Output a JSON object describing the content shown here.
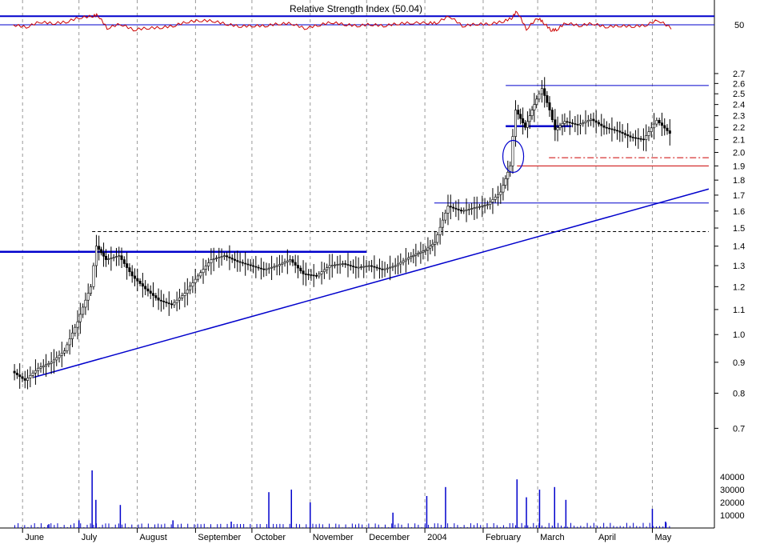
{
  "chart_data": {
    "type": "candlestick",
    "rsi_panel": {
      "title": "Relative Strength Index (50.04)",
      "y_tick_label": "50",
      "value_range": [
        0,
        100
      ],
      "levels": [
        70,
        50
      ]
    },
    "price_panel": {
      "scale": "log",
      "ylim": [
        0.63,
        2.8
      ],
      "y_ticks": [
        "2.7",
        "2.6",
        "2.5",
        "2.4",
        "2.3",
        "2.2",
        "2.1",
        "2.0",
        "1.9",
        "1.8",
        "1.7",
        "1.6",
        "1.5",
        "1.4",
        "1.3",
        "1.2",
        "1.1",
        "1.0",
        "0.9",
        "0.8",
        "0.7"
      ],
      "grid": "vertical dashed at month starts",
      "series": [
        {
          "date": "2003-05-27",
          "close": 0.87
        },
        {
          "date": "2003-06-03",
          "close": 0.84
        },
        {
          "date": "2003-06-10",
          "close": 0.88
        },
        {
          "date": "2003-06-17",
          "close": 0.9
        },
        {
          "date": "2003-06-24",
          "close": 0.94
        },
        {
          "date": "2003-07-01",
          "close": 1.05
        },
        {
          "date": "2003-07-08",
          "close": 1.2
        },
        {
          "date": "2003-07-11",
          "close": 1.4
        },
        {
          "date": "2003-07-16",
          "close": 1.33
        },
        {
          "date": "2003-07-23",
          "close": 1.35
        },
        {
          "date": "2003-07-30",
          "close": 1.25
        },
        {
          "date": "2003-08-06",
          "close": 1.19
        },
        {
          "date": "2003-08-13",
          "close": 1.14
        },
        {
          "date": "2003-08-20",
          "close": 1.12
        },
        {
          "date": "2003-08-27",
          "close": 1.17
        },
        {
          "date": "2003-09-03",
          "close": 1.25
        },
        {
          "date": "2003-09-10",
          "close": 1.33
        },
        {
          "date": "2003-09-17",
          "close": 1.35
        },
        {
          "date": "2003-09-24",
          "close": 1.32
        },
        {
          "date": "2003-10-01",
          "close": 1.3
        },
        {
          "date": "2003-10-08",
          "close": 1.28
        },
        {
          "date": "2003-10-15",
          "close": 1.3
        },
        {
          "date": "2003-10-22",
          "close": 1.33
        },
        {
          "date": "2003-10-29",
          "close": 1.26
        },
        {
          "date": "2003-11-05",
          "close": 1.25
        },
        {
          "date": "2003-11-12",
          "close": 1.3
        },
        {
          "date": "2003-11-19",
          "close": 1.31
        },
        {
          "date": "2003-11-26",
          "close": 1.29
        },
        {
          "date": "2003-12-03",
          "close": 1.3
        },
        {
          "date": "2003-12-10",
          "close": 1.28
        },
        {
          "date": "2003-12-17",
          "close": 1.3
        },
        {
          "date": "2003-12-24",
          "close": 1.34
        },
        {
          "date": "2004-01-02",
          "close": 1.38
        },
        {
          "date": "2004-01-07",
          "close": 1.42
        },
        {
          "date": "2004-01-14",
          "close": 1.63
        },
        {
          "date": "2004-01-21",
          "close": 1.6
        },
        {
          "date": "2004-01-28",
          "close": 1.62
        },
        {
          "date": "2004-02-04",
          "close": 1.64
        },
        {
          "date": "2004-02-11",
          "close": 1.72
        },
        {
          "date": "2004-02-16",
          "close": 1.9
        },
        {
          "date": "2004-02-19",
          "close": 2.35
        },
        {
          "date": "2004-02-24",
          "close": 2.2
        },
        {
          "date": "2004-03-01",
          "close": 2.45
        },
        {
          "date": "2004-03-04",
          "close": 2.55
        },
        {
          "date": "2004-03-08",
          "close": 2.35
        },
        {
          "date": "2004-03-11",
          "close": 2.18
        },
        {
          "date": "2004-03-16",
          "close": 2.25
        },
        {
          "date": "2004-03-23",
          "close": 2.22
        },
        {
          "date": "2004-03-30",
          "close": 2.27
        },
        {
          "date": "2004-04-06",
          "close": 2.2
        },
        {
          "date": "2004-04-13",
          "close": 2.17
        },
        {
          "date": "2004-04-20",
          "close": 2.12
        },
        {
          "date": "2004-04-27",
          "close": 2.1
        },
        {
          "date": "2004-05-04",
          "close": 2.26
        },
        {
          "date": "2004-05-11",
          "close": 2.15
        }
      ],
      "horizontal_lines": [
        {
          "price": 1.37,
          "from": "2003-05-20",
          "to": "2003-12-01",
          "color": "#0000cc",
          "style": "solid-thick"
        },
        {
          "price": 1.48,
          "from": "2003-07-08",
          "to": "2004-05-31",
          "color": "#000000",
          "style": "dashed"
        },
        {
          "price": 1.65,
          "from": "2004-01-06",
          "to": "2004-05-31",
          "color": "#0000cc",
          "style": "solid"
        },
        {
          "price": 2.58,
          "from": "2004-02-13",
          "to": "2004-05-31",
          "color": "#0000cc",
          "style": "solid"
        },
        {
          "price": 2.21,
          "from": "2004-02-13",
          "to": "2004-03-19",
          "color": "#0000cc",
          "style": "solid-thick"
        },
        {
          "price": 1.9,
          "from": "2004-02-19",
          "to": "2004-05-31",
          "color": "#cc0000",
          "style": "solid"
        },
        {
          "price": 1.96,
          "from": "2004-03-07",
          "to": "2004-05-31",
          "color": "#cc0000",
          "style": "dash-dot"
        }
      ],
      "trendline": {
        "from": {
          "date": "2003-06-07",
          "price": 0.85
        },
        "to": {
          "date": "2004-05-31",
          "price": 1.74
        },
        "color": "#0000cc"
      }
    },
    "volume_panel": {
      "y_ticks": [
        "40000",
        "30000",
        "20000",
        "10000"
      ],
      "ylim": [
        0,
        50000
      ],
      "bars": [
        {
          "date": "2003-06-15",
          "value": 3000
        },
        {
          "date": "2003-07-01",
          "value": 6000
        },
        {
          "date": "2003-07-08",
          "value": 45000
        },
        {
          "date": "2003-07-10",
          "value": 22000
        },
        {
          "date": "2003-07-23",
          "value": 18000
        },
        {
          "date": "2003-08-20",
          "value": 6000
        },
        {
          "date": "2003-09-20",
          "value": 5000
        },
        {
          "date": "2003-10-10",
          "value": 28000
        },
        {
          "date": "2003-10-22",
          "value": 30000
        },
        {
          "date": "2003-11-01",
          "value": 20000
        },
        {
          "date": "2003-12-15",
          "value": 12000
        },
        {
          "date": "2004-01-02",
          "value": 25000
        },
        {
          "date": "2004-01-12",
          "value": 32000
        },
        {
          "date": "2004-02-19",
          "value": 38000
        },
        {
          "date": "2004-02-24",
          "value": 24000
        },
        {
          "date": "2004-03-02",
          "value": 30000
        },
        {
          "date": "2004-03-10",
          "value": 32000
        },
        {
          "date": "2004-03-16",
          "value": 22000
        },
        {
          "date": "2004-05-01",
          "value": 15000
        },
        {
          "date": "2004-05-08",
          "value": 5000
        }
      ]
    },
    "x_axis": {
      "ticks": [
        {
          "label": "June",
          "date": "2003-06-01"
        },
        {
          "label": "July",
          "date": "2003-07-01"
        },
        {
          "label": "August",
          "date": "2003-08-01"
        },
        {
          "label": "September",
          "date": "2003-09-01"
        },
        {
          "label": "October",
          "date": "2003-10-01"
        },
        {
          "label": "November",
          "date": "2003-11-01"
        },
        {
          "label": "December",
          "date": "2003-12-01"
        },
        {
          "label": "2004",
          "date": "2004-01-01"
        },
        {
          "label": "February",
          "date": "2004-02-01"
        },
        {
          "label": "March",
          "date": "2004-03-01"
        },
        {
          "label": "April",
          "date": "2004-04-01"
        },
        {
          "label": "May",
          "date": "2004-05-01"
        }
      ]
    },
    "colors": {
      "price": "#000000",
      "rsi": "#cc0000",
      "trend": "#0000cc",
      "volume": "#0000cc",
      "grid": "#999999"
    }
  }
}
